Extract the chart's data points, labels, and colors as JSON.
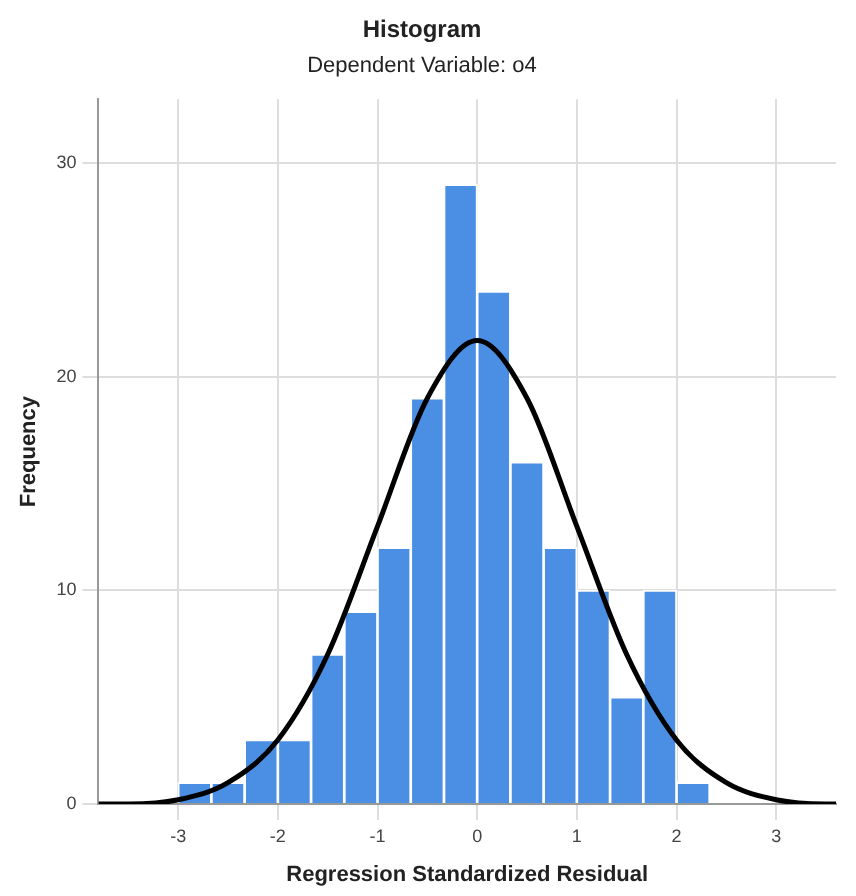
{
  "chart_data": {
    "type": "histogram",
    "title": "Histogram",
    "subtitle": "Dependent Variable: o4",
    "xlabel": "Regression Standardized Residual",
    "ylabel": "Frequency",
    "bins": [
      -3,
      -2.667,
      -2.333,
      -2,
      -1.667,
      -1.333,
      -1,
      -0.667,
      -0.333,
      0,
      0.333,
      0.667,
      1,
      1.333,
      1.667,
      2,
      2.333
    ],
    "values": [
      1,
      1,
      3,
      3,
      7,
      9,
      12,
      19,
      29,
      24,
      16,
      12,
      10,
      5,
      10,
      1
    ],
    "color": "#4a8fe4",
    "series": [
      {
        "type": "line",
        "color": "#000000",
        "x": [
          -3.8,
          -3.5,
          -3,
          -2.5,
          -2,
          -1.5,
          -1,
          -0.5,
          0,
          0.5,
          1,
          1.5,
          2,
          2.5,
          3,
          3.5,
          3.6
        ],
        "values": [
          0,
          0,
          0.2,
          1,
          3,
          7,
          13,
          19,
          21.7,
          19,
          13,
          7,
          3,
          1,
          0.2,
          0,
          0
        ]
      }
    ],
    "marker": "none",
    "line_style": "solid",
    "xlim": [
      -3.8,
      3.6
    ],
    "xticks": [
      -3,
      -2,
      -1,
      0,
      1,
      2,
      3
    ],
    "ylim": [
      0,
      33
    ],
    "yticks": [
      0,
      10,
      20,
      30
    ],
    "grid": true,
    "legend": false
  }
}
